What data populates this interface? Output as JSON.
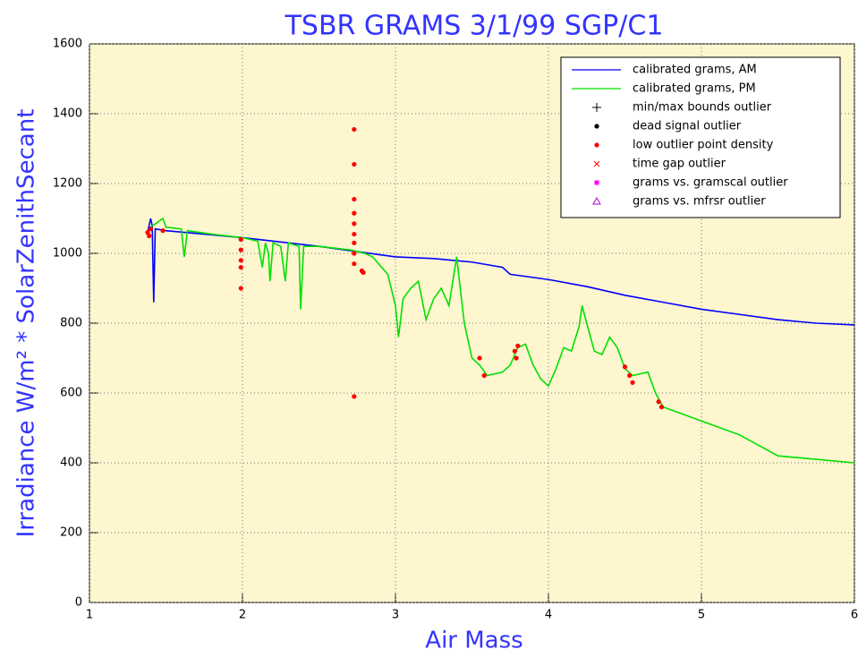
{
  "chart_data": {
    "type": "line",
    "title": "TSBR GRAMS 3/1/99 SGP/C1",
    "xlabel": "Air Mass",
    "ylabel": "Irradiance W/m² * SolarZenithSecant",
    "xlim": [
      1,
      6
    ],
    "xticks": [
      1,
      2,
      3,
      4,
      5,
      6
    ],
    "ylim": [
      0,
      1600
    ],
    "yticks": [
      0,
      200,
      400,
      600,
      800,
      1000,
      1200,
      1400,
      1600
    ],
    "grid": true,
    "legend": "upper right",
    "background": "#fdf6cf",
    "series": [
      {
        "name": "calibrated grams, AM",
        "color": "#0000ff",
        "marker": "line",
        "x": [
          1.38,
          1.4,
          1.41,
          1.42,
          1.43,
          1.5,
          1.75,
          2.0,
          2.5,
          3.0,
          3.25,
          3.5,
          3.7,
          3.75,
          4.0,
          4.25,
          4.5,
          4.75,
          5.0,
          5.25,
          5.5,
          5.75,
          6.0
        ],
        "values": [
          1060,
          1100,
          1080,
          860,
          1070,
          1065,
          1055,
          1045,
          1020,
          990,
          985,
          975,
          960,
          940,
          925,
          905,
          880,
          860,
          840,
          825,
          810,
          800,
          795
        ]
      },
      {
        "name": "calibrated grams, PM",
        "color": "#00e000",
        "marker": "line",
        "x": [
          1.4,
          1.48,
          1.5,
          1.6,
          1.62,
          1.64,
          1.8,
          2.0,
          2.1,
          2.13,
          2.15,
          2.17,
          2.18,
          2.2,
          2.25,
          2.28,
          2.3,
          2.37,
          2.38,
          2.4,
          2.5,
          2.7,
          2.8,
          2.85,
          2.95,
          3.0,
          3.02,
          3.05,
          3.1,
          3.15,
          3.2,
          3.25,
          3.3,
          3.35,
          3.4,
          3.45,
          3.5,
          3.55,
          3.6,
          3.7,
          3.75,
          3.8,
          3.85,
          3.9,
          3.95,
          4.0,
          4.05,
          4.1,
          4.15,
          4.2,
          4.22,
          4.25,
          4.3,
          4.35,
          4.4,
          4.45,
          4.5,
          4.55,
          4.65,
          4.7,
          4.75,
          5.0,
          5.25,
          5.5,
          5.75,
          6.0
        ],
        "values": [
          1075,
          1100,
          1075,
          1070,
          990,
          1065,
          1055,
          1045,
          1035,
          960,
          1030,
          1000,
          920,
          1030,
          1020,
          920,
          1030,
          1020,
          840,
          1020,
          1020,
          1010,
          1000,
          990,
          940,
          850,
          760,
          870,
          900,
          920,
          810,
          870,
          900,
          850,
          990,
          800,
          700,
          680,
          650,
          660,
          680,
          730,
          740,
          680,
          640,
          620,
          670,
          730,
          720,
          790,
          850,
          800,
          720,
          710,
          760,
          730,
          670,
          650,
          660,
          600,
          560,
          520,
          480,
          420,
          410,
          400
        ]
      },
      {
        "name": "min/max bounds outlier",
        "color": "#000000",
        "marker": "plus",
        "x": [],
        "values": []
      },
      {
        "name": "dead signal outlier",
        "color": "#000000",
        "marker": "dot",
        "x": [],
        "values": []
      },
      {
        "name": "low outlier point density",
        "color": "#ff0000",
        "marker": "dot",
        "x": [
          1.38,
          1.39,
          1.4,
          1.48,
          1.99,
          1.99,
          1.99,
          1.99,
          1.99,
          2.73,
          2.73,
          2.73,
          2.73,
          2.73,
          2.73,
          2.73,
          2.73,
          2.73,
          2.73,
          2.78,
          2.79,
          3.55,
          3.58,
          3.78,
          3.79,
          3.8,
          4.5,
          4.53,
          4.55,
          4.72,
          4.74
        ],
        "values": [
          1060,
          1050,
          1070,
          1065,
          1040,
          1010,
          980,
          960,
          900,
          1355,
          1255,
          1155,
          1115,
          1085,
          1055,
          1030,
          1000,
          970,
          590,
          950,
          945,
          700,
          650,
          720,
          700,
          735,
          675,
          650,
          630,
          575,
          560
        ]
      },
      {
        "name": "time gap outlier",
        "color": "#ff0000",
        "marker": "x",
        "x": [],
        "values": []
      },
      {
        "name": "grams vs. gramscal outlier",
        "color": "#ff00ff",
        "marker": "square",
        "x": [],
        "values": []
      },
      {
        "name": "grams vs. mfrsr outlier",
        "color": "#aa00cc",
        "marker": "triangle",
        "x": [],
        "values": []
      }
    ]
  }
}
